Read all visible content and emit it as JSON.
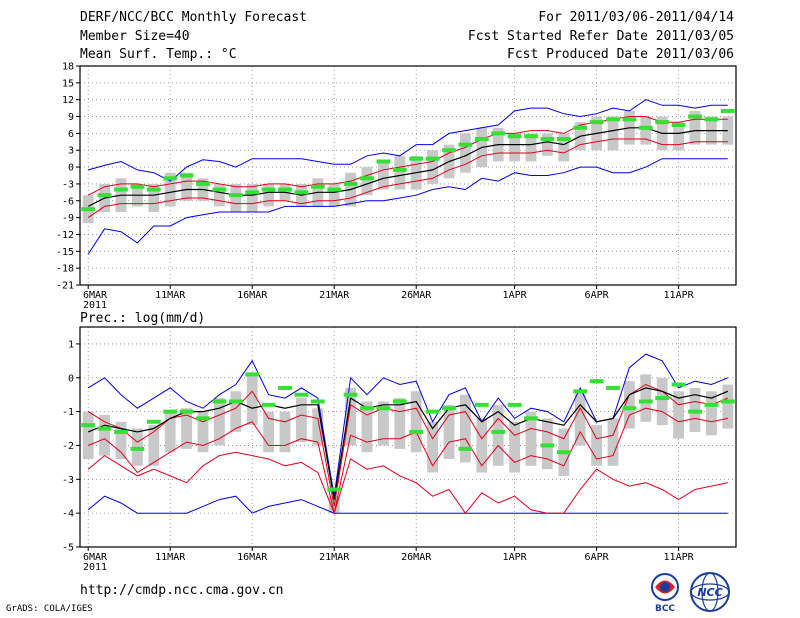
{
  "header": {
    "line1_left": "DERF/NCC/BCC Monthly Forecast",
    "line2_left": "Member Size=40",
    "line3_left": "Mean Surf. Temp.: °C",
    "line1_right": "For 2011/03/06-2011/04/14",
    "line2_right": "Fcst Started Refer Date 2011/03/05",
    "line3_right": "Fcst Produced Date 2011/03/06"
  },
  "footer": {
    "url": "http://cmdp.ncc.cma.gov.cn",
    "grads": "GrADS: COLA/IGES",
    "logo_bcc_text": "BCC",
    "logo_ncc_text": "NCC"
  },
  "colors": {
    "mean": "#000000",
    "spread": "#e0001a",
    "extremes": "#0000e6",
    "ensemble_median": "#33e033",
    "box": "#c8c8c8",
    "grid": "#888888"
  },
  "chart_data": [
    {
      "type": "line",
      "name": "temperature",
      "title": "",
      "ylabel": "Mean Surf. Temp.: °C",
      "ylim": [
        -21,
        18
      ],
      "yticks": [
        18,
        15,
        12,
        9,
        6,
        3,
        0,
        -3,
        -6,
        -9,
        -12,
        -15,
        -18,
        -21
      ],
      "xtick_labels": [
        "6MAR\n2011",
        "11MAR",
        "16MAR",
        "21MAR",
        "26MAR",
        "1APR",
        "6APR",
        "11APR"
      ],
      "xtick_days": [
        0,
        5,
        10,
        15,
        20,
        26,
        31,
        36
      ],
      "days": 40,
      "series": [
        {
          "name": "max",
          "color": "extremes",
          "values": [
            -0.5,
            0.3,
            1,
            -0.5,
            -1,
            -2.5,
            0,
            1.3,
            1,
            0,
            1.5,
            1.5,
            1.5,
            1.5,
            1,
            0.5,
            0.5,
            2,
            2.5,
            2,
            4,
            4,
            6,
            6.5,
            7,
            7.5,
            10,
            10.5,
            10.5,
            9.5,
            9,
            9.5,
            10.5,
            10,
            12,
            11,
            11,
            10.5,
            11,
            11
          ]
        },
        {
          "name": "mean_plus_sd",
          "color": "spread",
          "values": [
            -5,
            -3.5,
            -3,
            -3,
            -3.5,
            -3,
            -2.5,
            -2.5,
            -3,
            -3.5,
            -3.5,
            -3,
            -3,
            -3.5,
            -3,
            -3,
            -2.5,
            -1.5,
            -0.5,
            0,
            0.5,
            1,
            2.5,
            3.5,
            5,
            6,
            6,
            6.5,
            6.5,
            6,
            7.5,
            8,
            8.5,
            9,
            9,
            8,
            8,
            8.5,
            8.5,
            8.5
          ]
        },
        {
          "name": "mean",
          "color": "mean",
          "values": [
            -7,
            -5.5,
            -5,
            -5,
            -5,
            -4.5,
            -4,
            -4,
            -4.5,
            -5,
            -5,
            -4.5,
            -4.5,
            -5,
            -4.5,
            -4.5,
            -4,
            -3,
            -2,
            -1.5,
            -1,
            -0.5,
            1,
            2,
            3.5,
            4,
            4,
            4,
            4.5,
            4,
            5.5,
            6,
            6.5,
            7,
            7,
            6,
            6,
            6.5,
            6.5,
            6.5
          ]
        },
        {
          "name": "mean_minus_sd",
          "color": "spread",
          "values": [
            -9,
            -7,
            -6.5,
            -6.5,
            -6.5,
            -6,
            -5.5,
            -5.5,
            -6,
            -6.5,
            -6.5,
            -6,
            -6,
            -6.5,
            -6,
            -6,
            -5.5,
            -4.5,
            -3.5,
            -3,
            -2.5,
            -2,
            -0.5,
            0.5,
            2,
            2.5,
            2.5,
            2.5,
            3,
            2.5,
            4,
            4.5,
            5,
            5,
            5,
            4,
            4,
            4.5,
            4.5,
            4.5
          ]
        },
        {
          "name": "min",
          "color": "extremes",
          "values": [
            -15.5,
            -11,
            -11.5,
            -13.5,
            -10.5,
            -10.5,
            -9,
            -8.5,
            -8,
            -8,
            -8,
            -8,
            -7,
            -7,
            -7,
            -7,
            -6.5,
            -6,
            -6,
            -5.5,
            -5,
            -4,
            -3.5,
            -4,
            -2,
            -2.5,
            -1,
            -1.5,
            -1.5,
            -1,
            0,
            0,
            -1,
            -1,
            0,
            1.5,
            1.5,
            1.5,
            1.5,
            1.5
          ]
        },
        {
          "name": "box_top",
          "color": "box",
          "values": [
            -5,
            -3,
            -2,
            -3,
            -3,
            -1,
            -1,
            -2,
            -3,
            -3,
            -3,
            -3,
            -3,
            -3,
            -2,
            -3,
            -1,
            0,
            1,
            2,
            2,
            3,
            4,
            6,
            7,
            7,
            6,
            6,
            6,
            6,
            8,
            9,
            9,
            10,
            9,
            9,
            8,
            10,
            9,
            9
          ]
        },
        {
          "name": "box_bottom",
          "color": "box",
          "values": [
            -10,
            -8,
            -8,
            -7,
            -8,
            -7,
            -6,
            -6,
            -7,
            -8,
            -8,
            -7,
            -6,
            -7,
            -7,
            -7,
            -7,
            -5,
            -4,
            -4,
            -4,
            -3,
            -2,
            -1,
            0,
            1,
            1,
            1,
            2,
            1,
            3,
            3,
            3,
            4,
            4,
            3,
            3,
            4,
            4,
            4
          ]
        },
        {
          "name": "ensemble_median",
          "color": "ensemble_median",
          "values": [
            -7.5,
            -5,
            -4,
            -3.5,
            -4,
            -2,
            -1.5,
            -3,
            -4,
            -5,
            -4.5,
            -4,
            -4,
            -4.5,
            -3.5,
            -4,
            -3,
            -2,
            1,
            -0.5,
            1.5,
            1.5,
            3,
            4,
            5,
            6,
            5.5,
            5.5,
            5,
            5,
            7,
            8,
            8.5,
            8.5,
            7,
            8,
            7.5,
            9,
            8.5,
            10
          ]
        }
      ]
    },
    {
      "type": "line",
      "name": "precipitation",
      "title": "Prec.: log(mm/d)",
      "ylim": [
        -5,
        1.5
      ],
      "yticks": [
        1,
        0,
        -1,
        -2,
        -3,
        -4,
        -5
      ],
      "xtick_labels": [
        "6MAR\n2011",
        "11MAR",
        "16MAR",
        "21MAR",
        "26MAR",
        "1APR",
        "6APR",
        "11APR"
      ],
      "xtick_days": [
        0,
        5,
        10,
        15,
        20,
        26,
        31,
        36
      ],
      "days": 40,
      "series": [
        {
          "name": "max",
          "color": "extremes",
          "values": [
            -0.3,
            0,
            -0.5,
            -0.9,
            -0.6,
            -0.3,
            -0.7,
            -0.9,
            -0.5,
            -0.2,
            0.5,
            -0.5,
            -0.6,
            -0.3,
            -0.6,
            -3.5,
            0,
            -0.5,
            0,
            -0.2,
            -0.1,
            -1.3,
            -0.5,
            -0.3,
            -1.3,
            -0.6,
            -1.2,
            -0.9,
            -1,
            -1.3,
            -0.3,
            -1.3,
            -1.2,
            0.3,
            0.7,
            0.5,
            -0.3,
            -0.1,
            -0.2,
            0
          ]
        },
        {
          "name": "mean_plus_sd",
          "color": "spread",
          "values": [
            -1,
            -1.3,
            -1.5,
            -1.9,
            -1.6,
            -1.2,
            -1.1,
            -1.3,
            -1.1,
            -0.9,
            -0.4,
            -1.2,
            -1.3,
            -1.1,
            -1.2,
            -3.8,
            -0.8,
            -1.1,
            -0.9,
            -1,
            -0.9,
            -1.8,
            -1.1,
            -1,
            -1.8,
            -1.2,
            -1.7,
            -1.5,
            -1.6,
            -1.8,
            -0.9,
            -1.8,
            -1.7,
            -0.5,
            -0.2,
            -0.4,
            -0.8,
            -0.7,
            -0.8,
            -0.6
          ]
        },
        {
          "name": "mean",
          "color": "mean",
          "values": [
            -1.6,
            -1.4,
            -1.5,
            -1.6,
            -1.5,
            -1.2,
            -1,
            -1,
            -0.9,
            -0.7,
            -0.9,
            -0.8,
            -0.9,
            -0.8,
            -0.8,
            -3.6,
            -0.6,
            -0.9,
            -0.8,
            -0.8,
            -0.7,
            -1.5,
            -0.9,
            -0.8,
            -1.3,
            -1,
            -1.4,
            -1.2,
            -1.3,
            -1.4,
            -0.8,
            -1.3,
            -1.2,
            -0.5,
            -0.3,
            -0.4,
            -0.6,
            -0.5,
            -0.6,
            -0.4
          ]
        },
        {
          "name": "mean_minus_sd",
          "color": "spread",
          "values": [
            -2,
            -1.8,
            -2.2,
            -2.8,
            -2.5,
            -2.2,
            -1.9,
            -2,
            -1.8,
            -1.5,
            -1.3,
            -2,
            -2,
            -1.8,
            -1.9,
            -4,
            -1.7,
            -1.9,
            -1.8,
            -1.8,
            -1.6,
            -2.6,
            -1.9,
            -1.8,
            -2.6,
            -2,
            -2.5,
            -2.3,
            -2.4,
            -2.6,
            -1.6,
            -2.4,
            -2.3,
            -1.1,
            -0.9,
            -1,
            -1.3,
            -1.2,
            -1.3,
            -1.2
          ]
        },
        {
          "name": "min",
          "color": "extremes",
          "values": [
            -3.9,
            -3.5,
            -3.7,
            -4,
            -4,
            -4,
            -4,
            -3.8,
            -3.6,
            -3.5,
            -4,
            -3.8,
            -3.7,
            -3.6,
            -3.8,
            -4,
            -4,
            -4,
            -4,
            -4,
            -4,
            -4,
            -4,
            -4,
            -4,
            -4,
            -4,
            -4,
            -4,
            -4,
            -4,
            -4,
            -4,
            -4,
            -4,
            -4,
            -4,
            -4,
            -4,
            -4
          ]
        },
        {
          "name": "min_sd_lower",
          "color": "spread",
          "values": [
            -2.7,
            -2.3,
            -2.6,
            -2.9,
            -2.7,
            -2.9,
            -3.1,
            -2.6,
            -2.3,
            -2.2,
            -2.3,
            -2.4,
            -2.6,
            -2.5,
            -2.8,
            -4,
            -2.4,
            -2.7,
            -2.6,
            -2.9,
            -3.1,
            -3.5,
            -3.3,
            -4,
            -3.4,
            -3.7,
            -3.5,
            -3.9,
            -4,
            -4,
            -3.3,
            -2.7,
            -3,
            -3.2,
            -3.1,
            -3.3,
            -3.6,
            -3.3,
            -3.2,
            -3.1
          ]
        },
        {
          "name": "box_top",
          "color": "box",
          "values": [
            -1,
            -1.1,
            -1.3,
            -1.5,
            -1.4,
            -1,
            -0.9,
            -1,
            -0.6,
            -0.4,
            0.1,
            -1,
            -1,
            -0.6,
            -0.9,
            -3.5,
            -0.3,
            -0.7,
            -0.7,
            -0.6,
            -0.4,
            -1.3,
            -0.8,
            -0.5,
            -1.2,
            -0.8,
            -1.3,
            -1,
            -1.2,
            -1.5,
            -0.4,
            -1.4,
            -1.2,
            -0.1,
            0.1,
            0,
            -0.4,
            -0.3,
            -0.4,
            -0.2
          ]
        },
        {
          "name": "box_bottom",
          "color": "box",
          "values": [
            -2.4,
            -2.3,
            -2.4,
            -2.6,
            -2.6,
            -2.2,
            -2.1,
            -2.2,
            -2,
            -1.6,
            -1.4,
            -2.2,
            -2.2,
            -1.9,
            -2,
            -4,
            -2,
            -2.2,
            -2,
            -2.1,
            -2.2,
            -2.8,
            -2.4,
            -2.5,
            -2.8,
            -2.6,
            -2.8,
            -2.6,
            -2.7,
            -2.9,
            -2,
            -2.6,
            -2.6,
            -1.5,
            -1.3,
            -1.4,
            -1.8,
            -1.6,
            -1.7,
            -1.5
          ]
        },
        {
          "name": "ensemble_median",
          "color": "ensemble_median",
          "values": [
            -1.4,
            -1.5,
            -1.6,
            -2.1,
            -1.3,
            -1,
            -1,
            -1.2,
            -0.7,
            -0.7,
            0.1,
            -0.8,
            -0.3,
            -0.5,
            -0.7,
            -3.3,
            -0.5,
            -0.9,
            -0.9,
            -0.7,
            -1.6,
            -1,
            -0.9,
            -2.1,
            -0.8,
            -1.6,
            -0.8,
            -1.2,
            -2,
            -2.2,
            -0.4,
            -0.1,
            -0.3,
            -0.9,
            -0.7,
            -0.6,
            -0.2,
            -1,
            -0.8,
            -0.7
          ]
        }
      ]
    }
  ]
}
